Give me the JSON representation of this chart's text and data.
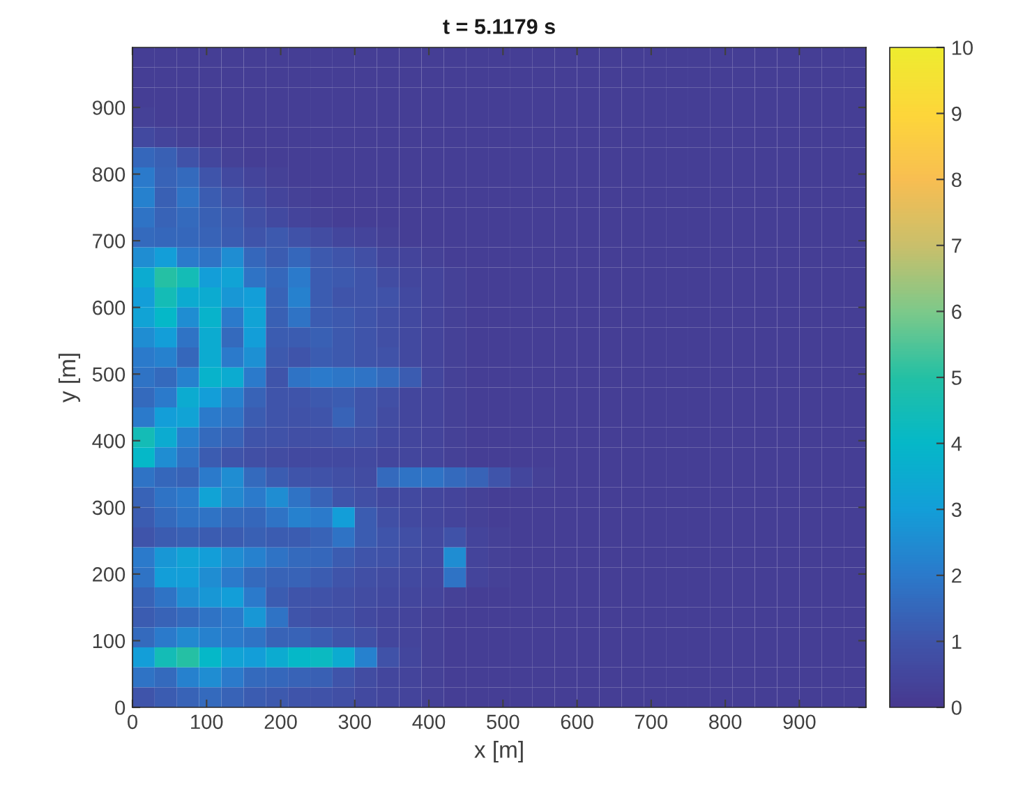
{
  "chart_data": {
    "type": "heatmap",
    "title": "t = 5.1179 s",
    "xlabel": "x [m]",
    "ylabel": "y [m]",
    "xlim": [
      0,
      990
    ],
    "ylim": [
      0,
      990
    ],
    "xticks": [
      0,
      100,
      200,
      300,
      400,
      500,
      600,
      700,
      800,
      900
    ],
    "yticks": [
      0,
      100,
      200,
      300,
      400,
      500,
      600,
      700,
      800,
      900
    ],
    "clim": [
      0,
      10
    ],
    "cticks": [
      0,
      1,
      2,
      3,
      4,
      5,
      6,
      7,
      8,
      9,
      10
    ],
    "cells": [
      [
        0.2,
        0.2,
        0.2,
        0.2,
        0.2,
        0.2,
        0.2,
        0.2,
        0.2,
        0.2,
        0.2,
        0.2,
        0.2,
        0.2,
        0.2,
        0.2,
        0.2,
        0.2,
        0.2,
        0.2,
        0.2,
        0.2,
        0.2,
        0.2,
        0.2,
        0.2,
        0.2,
        0.2,
        0.2,
        0.2,
        0.2,
        0.2,
        0.2
      ],
      [
        0.2,
        0.2,
        0.2,
        0.2,
        0.2,
        0.2,
        0.2,
        0.2,
        0.2,
        0.2,
        0.2,
        0.2,
        0.2,
        0.2,
        0.2,
        0.2,
        0.2,
        0.2,
        0.2,
        0.2,
        0.2,
        0.2,
        0.2,
        0.2,
        0.2,
        0.2,
        0.2,
        0.2,
        0.2,
        0.2,
        0.2,
        0.2,
        0.2
      ],
      [
        0.2,
        0.2,
        0.2,
        0.2,
        0.2,
        0.2,
        0.2,
        0.2,
        0.2,
        0.2,
        0.2,
        0.2,
        0.2,
        0.2,
        0.2,
        0.2,
        0.2,
        0.2,
        0.2,
        0.2,
        0.2,
        0.2,
        0.2,
        0.2,
        0.2,
        0.2,
        0.2,
        0.2,
        0.2,
        0.2,
        0.2,
        0.2,
        0.2
      ],
      [
        0.3,
        0.2,
        0.2,
        0.2,
        0.2,
        0.2,
        0.2,
        0.2,
        0.2,
        0.2,
        0.2,
        0.2,
        0.2,
        0.2,
        0.2,
        0.2,
        0.2,
        0.2,
        0.2,
        0.2,
        0.2,
        0.2,
        0.2,
        0.2,
        0.2,
        0.2,
        0.2,
        0.2,
        0.2,
        0.2,
        0.2,
        0.2,
        0.2
      ],
      [
        0.6,
        0.4,
        0.3,
        0.2,
        0.2,
        0.2,
        0.2,
        0.2,
        0.2,
        0.2,
        0.2,
        0.2,
        0.2,
        0.2,
        0.2,
        0.2,
        0.2,
        0.2,
        0.2,
        0.2,
        0.2,
        0.2,
        0.2,
        0.2,
        0.2,
        0.2,
        0.2,
        0.2,
        0.2,
        0.2,
        0.2,
        0.2,
        0.2
      ],
      [
        1.5,
        1.3,
        0.9,
        0.5,
        0.3,
        0.2,
        0.2,
        0.2,
        0.2,
        0.2,
        0.2,
        0.2,
        0.2,
        0.2,
        0.2,
        0.2,
        0.2,
        0.2,
        0.2,
        0.2,
        0.2,
        0.2,
        0.2,
        0.2,
        0.2,
        0.2,
        0.2,
        0.2,
        0.2,
        0.2,
        0.2,
        0.2,
        0.2
      ],
      [
        2.0,
        1.4,
        1.6,
        1.0,
        0.6,
        0.4,
        0.3,
        0.2,
        0.2,
        0.2,
        0.2,
        0.2,
        0.2,
        0.2,
        0.2,
        0.2,
        0.2,
        0.2,
        0.2,
        0.2,
        0.2,
        0.2,
        0.2,
        0.2,
        0.2,
        0.2,
        0.2,
        0.2,
        0.2,
        0.2,
        0.2,
        0.2,
        0.2
      ],
      [
        2.2,
        1.3,
        1.8,
        1.2,
        0.9,
        0.6,
        0.4,
        0.3,
        0.2,
        0.2,
        0.2,
        0.2,
        0.2,
        0.2,
        0.2,
        0.2,
        0.2,
        0.2,
        0.2,
        0.2,
        0.2,
        0.2,
        0.2,
        0.2,
        0.2,
        0.2,
        0.2,
        0.2,
        0.2,
        0.2,
        0.2,
        0.2,
        0.2
      ],
      [
        1.8,
        1.4,
        1.6,
        1.3,
        1.1,
        0.8,
        0.6,
        0.4,
        0.3,
        0.2,
        0.2,
        0.2,
        0.2,
        0.2,
        0.2,
        0.2,
        0.2,
        0.2,
        0.2,
        0.2,
        0.2,
        0.2,
        0.2,
        0.2,
        0.2,
        0.2,
        0.2,
        0.2,
        0.2,
        0.2,
        0.2,
        0.2,
        0.2
      ],
      [
        1.6,
        1.5,
        1.5,
        1.4,
        1.2,
        1.0,
        1.1,
        0.9,
        0.7,
        0.5,
        0.4,
        0.3,
        0.2,
        0.2,
        0.2,
        0.2,
        0.2,
        0.2,
        0.2,
        0.2,
        0.2,
        0.2,
        0.2,
        0.2,
        0.2,
        0.2,
        0.2,
        0.2,
        0.2,
        0.2,
        0.2,
        0.2,
        0.2
      ],
      [
        2.5,
        3.0,
        2.0,
        1.8,
        2.5,
        1.5,
        1.2,
        1.5,
        1.1,
        1.0,
        0.8,
        0.5,
        0.4,
        0.3,
        0.2,
        0.2,
        0.2,
        0.2,
        0.2,
        0.2,
        0.2,
        0.2,
        0.2,
        0.2,
        0.2,
        0.2,
        0.2,
        0.2,
        0.2,
        0.2,
        0.2,
        0.2,
        0.2
      ],
      [
        3.5,
        5.0,
        4.5,
        3.0,
        3.2,
        1.8,
        1.5,
        2.0,
        1.2,
        1.1,
        1.0,
        0.7,
        0.5,
        0.4,
        0.3,
        0.2,
        0.2,
        0.2,
        0.2,
        0.2,
        0.2,
        0.2,
        0.2,
        0.2,
        0.2,
        0.2,
        0.2,
        0.2,
        0.2,
        0.2,
        0.2,
        0.2,
        0.2
      ],
      [
        3.0,
        4.5,
        3.5,
        3.5,
        2.8,
        3.0,
        1.4,
        2.2,
        1.2,
        1.0,
        1.0,
        0.9,
        0.6,
        0.4,
        0.3,
        0.2,
        0.2,
        0.2,
        0.2,
        0.2,
        0.2,
        0.2,
        0.2,
        0.2,
        0.2,
        0.2,
        0.2,
        0.2,
        0.2,
        0.2,
        0.2,
        0.2,
        0.2
      ],
      [
        3.2,
        4.0,
        2.5,
        3.8,
        2.0,
        3.2,
        1.3,
        1.8,
        1.2,
        1.1,
        1.0,
        0.8,
        0.6,
        0.4,
        0.3,
        0.2,
        0.2,
        0.2,
        0.2,
        0.2,
        0.2,
        0.2,
        0.2,
        0.2,
        0.2,
        0.2,
        0.2,
        0.2,
        0.2,
        0.2,
        0.2,
        0.2,
        0.2
      ],
      [
        2.5,
        3.0,
        1.8,
        3.5,
        1.6,
        3.0,
        1.2,
        1.2,
        1.3,
        1.1,
        1.0,
        0.8,
        0.6,
        0.4,
        0.3,
        0.2,
        0.2,
        0.2,
        0.2,
        0.2,
        0.2,
        0.2,
        0.2,
        0.2,
        0.2,
        0.2,
        0.2,
        0.2,
        0.2,
        0.2,
        0.2,
        0.2,
        0.2
      ],
      [
        2.0,
        2.2,
        1.5,
        3.5,
        2.0,
        2.6,
        1.1,
        1.0,
        1.2,
        1.1,
        1.0,
        0.9,
        0.6,
        0.4,
        0.3,
        0.2,
        0.2,
        0.2,
        0.2,
        0.2,
        0.2,
        0.2,
        0.2,
        0.2,
        0.2,
        0.2,
        0.2,
        0.2,
        0.2,
        0.2,
        0.2,
        0.2,
        0.2
      ],
      [
        1.8,
        1.6,
        2.2,
        3.8,
        3.5,
        2.0,
        1.0,
        1.8,
        2.0,
        1.9,
        1.8,
        1.6,
        1.2,
        0.5,
        0.3,
        0.2,
        0.2,
        0.2,
        0.2,
        0.2,
        0.2,
        0.2,
        0.2,
        0.2,
        0.2,
        0.2,
        0.2,
        0.2,
        0.2,
        0.2,
        0.2,
        0.2,
        0.2
      ],
      [
        1.6,
        2.0,
        3.5,
        3.0,
        2.2,
        1.4,
        1.0,
        1.0,
        1.1,
        1.2,
        1.0,
        0.8,
        0.5,
        0.4,
        0.3,
        0.2,
        0.2,
        0.2,
        0.2,
        0.2,
        0.2,
        0.2,
        0.2,
        0.2,
        0.2,
        0.2,
        0.2,
        0.2,
        0.2,
        0.2,
        0.2,
        0.2,
        0.2
      ],
      [
        2.0,
        3.0,
        3.2,
        2.0,
        1.8,
        1.2,
        1.0,
        0.9,
        1.0,
        1.4,
        1.0,
        0.7,
        0.5,
        0.4,
        0.3,
        0.2,
        0.2,
        0.2,
        0.2,
        0.2,
        0.2,
        0.2,
        0.2,
        0.2,
        0.2,
        0.2,
        0.2,
        0.2,
        0.2,
        0.2,
        0.2,
        0.2,
        0.2
      ],
      [
        4.5,
        3.5,
        2.2,
        1.6,
        1.4,
        1.0,
        0.9,
        0.8,
        0.8,
        0.9,
        0.8,
        0.6,
        0.5,
        0.4,
        0.3,
        0.2,
        0.2,
        0.2,
        0.2,
        0.2,
        0.2,
        0.2,
        0.2,
        0.2,
        0.2,
        0.2,
        0.2,
        0.2,
        0.2,
        0.2,
        0.2,
        0.2,
        0.2
      ],
      [
        4.0,
        2.5,
        1.8,
        1.2,
        1.0,
        0.8,
        0.7,
        0.6,
        0.6,
        0.6,
        0.6,
        0.5,
        0.5,
        0.4,
        0.3,
        0.2,
        0.2,
        0.2,
        0.2,
        0.2,
        0.2,
        0.2,
        0.2,
        0.2,
        0.2,
        0.2,
        0.2,
        0.2,
        0.2,
        0.2,
        0.2,
        0.2,
        0.2
      ],
      [
        1.8,
        1.5,
        1.4,
        2.0,
        2.5,
        1.6,
        1.2,
        1.0,
        0.9,
        0.8,
        0.7,
        1.6,
        1.8,
        1.8,
        1.6,
        1.4,
        1.0,
        0.5,
        0.3,
        0.2,
        0.2,
        0.2,
        0.2,
        0.2,
        0.2,
        0.2,
        0.2,
        0.2,
        0.2,
        0.2,
        0.2,
        0.2,
        0.2
      ],
      [
        1.4,
        1.8,
        2.0,
        3.2,
        2.4,
        2.0,
        2.5,
        1.8,
        1.4,
        1.0,
        0.8,
        0.6,
        0.6,
        0.5,
        0.4,
        0.3,
        0.2,
        0.2,
        0.2,
        0.2,
        0.2,
        0.2,
        0.2,
        0.2,
        0.2,
        0.2,
        0.2,
        0.2,
        0.2,
        0.2,
        0.2,
        0.2,
        0.2
      ],
      [
        1.2,
        1.6,
        1.8,
        1.8,
        1.6,
        1.5,
        1.8,
        2.2,
        2.0,
        3.0,
        1.2,
        0.8,
        0.6,
        0.5,
        0.4,
        0.3,
        0.2,
        0.2,
        0.2,
        0.2,
        0.2,
        0.2,
        0.2,
        0.2,
        0.2,
        0.2,
        0.2,
        0.2,
        0.2,
        0.2,
        0.2,
        0.2,
        0.2
      ],
      [
        1.0,
        1.2,
        1.3,
        1.2,
        1.2,
        1.3,
        1.2,
        1.2,
        1.4,
        1.8,
        1.2,
        1.0,
        0.8,
        0.6,
        0.9,
        0.4,
        0.3,
        0.2,
        0.2,
        0.2,
        0.2,
        0.2,
        0.2,
        0.2,
        0.2,
        0.2,
        0.2,
        0.2,
        0.2,
        0.2,
        0.2,
        0.2,
        0.2
      ],
      [
        2.0,
        2.8,
        3.2,
        3.0,
        2.5,
        2.2,
        1.8,
        1.6,
        1.5,
        1.2,
        1.0,
        0.9,
        0.7,
        0.6,
        2.5,
        0.4,
        0.3,
        0.2,
        0.2,
        0.2,
        0.2,
        0.2,
        0.2,
        0.2,
        0.2,
        0.2,
        0.2,
        0.2,
        0.2,
        0.2,
        0.2,
        0.2,
        0.2
      ],
      [
        1.8,
        3.0,
        3.0,
        2.5,
        2.0,
        1.6,
        1.4,
        1.4,
        1.2,
        1.0,
        0.8,
        0.7,
        0.6,
        0.5,
        1.8,
        0.4,
        0.3,
        0.2,
        0.2,
        0.2,
        0.2,
        0.2,
        0.2,
        0.2,
        0.2,
        0.2,
        0.2,
        0.2,
        0.2,
        0.2,
        0.2,
        0.2,
        0.2
      ],
      [
        1.4,
        1.8,
        2.5,
        2.8,
        3.0,
        2.0,
        1.2,
        1.0,
        0.9,
        0.8,
        0.7,
        0.6,
        0.5,
        0.4,
        0.3,
        0.2,
        0.2,
        0.2,
        0.2,
        0.2,
        0.2,
        0.2,
        0.2,
        0.2,
        0.2,
        0.2,
        0.2,
        0.2,
        0.2,
        0.2,
        0.2,
        0.2,
        0.2
      ],
      [
        1.2,
        1.4,
        1.6,
        1.8,
        2.0,
        2.8,
        1.8,
        1.0,
        0.8,
        0.8,
        0.6,
        0.5,
        0.4,
        0.3,
        0.2,
        0.2,
        0.2,
        0.2,
        0.2,
        0.2,
        0.2,
        0.2,
        0.2,
        0.2,
        0.2,
        0.2,
        0.2,
        0.2,
        0.2,
        0.2,
        0.2,
        0.2,
        0.2
      ],
      [
        1.6,
        2.0,
        2.4,
        2.2,
        2.0,
        1.8,
        1.4,
        1.4,
        1.2,
        1.0,
        0.8,
        0.5,
        0.4,
        0.3,
        0.2,
        0.2,
        0.2,
        0.2,
        0.2,
        0.2,
        0.2,
        0.2,
        0.2,
        0.2,
        0.2,
        0.2,
        0.2,
        0.2,
        0.2,
        0.2,
        0.2,
        0.2,
        0.2
      ],
      [
        3.0,
        4.5,
        5.0,
        4.0,
        3.2,
        3.0,
        3.5,
        4.0,
        4.2,
        3.5,
        2.2,
        0.9,
        0.5,
        0.3,
        0.2,
        0.2,
        0.2,
        0.2,
        0.2,
        0.2,
        0.2,
        0.2,
        0.2,
        0.2,
        0.2,
        0.2,
        0.2,
        0.2,
        0.2,
        0.2,
        0.2,
        0.2,
        0.2
      ],
      [
        1.8,
        1.6,
        2.2,
        2.5,
        2.0,
        1.6,
        1.5,
        1.4,
        1.3,
        1.0,
        0.7,
        0.5,
        0.4,
        0.3,
        0.2,
        0.2,
        0.2,
        0.2,
        0.2,
        0.2,
        0.2,
        0.2,
        0.2,
        0.2,
        0.2,
        0.2,
        0.2,
        0.2,
        0.2,
        0.2,
        0.2,
        0.2,
        0.2
      ],
      [
        1.0,
        1.2,
        1.4,
        1.6,
        1.4,
        1.2,
        1.1,
        1.0,
        0.9,
        0.8,
        0.6,
        0.5,
        0.4,
        0.3,
        0.2,
        0.2,
        0.2,
        0.2,
        0.2,
        0.2,
        0.2,
        0.2,
        0.2,
        0.2,
        0.2,
        0.2,
        0.2,
        0.2,
        0.2,
        0.2,
        0.2,
        0.2,
        0.2
      ]
    ]
  }
}
